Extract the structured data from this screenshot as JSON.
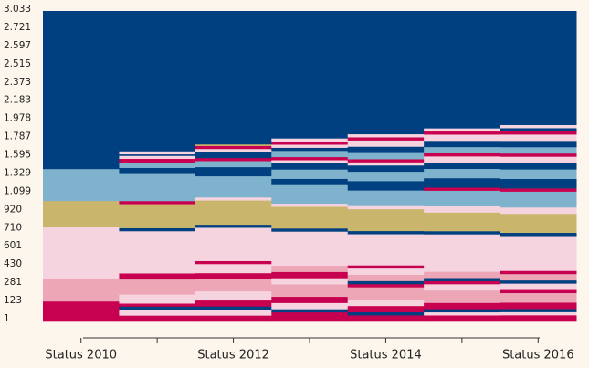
{
  "chart_data": {
    "type": "sequence-index",
    "categories": [
      "Status 2010",
      null,
      "Status 2012",
      null,
      "Status 2014",
      null,
      "Status 2016"
    ],
    "y_labels": [
      "1",
      "123",
      "281",
      "430",
      "601",
      "710",
      "920",
      "1.099",
      "1.329",
      "1.595",
      "1.787",
      "1.978",
      "2.183",
      "2.373",
      "2.515",
      "2.597",
      "2.721",
      "3.033"
    ],
    "state_colors": [
      "#003f80",
      "#7fb2cc",
      "#c9b56c",
      "#f5d4df",
      "#eca6b6",
      "#c7004f"
    ],
    "columns": [
      {
        "segments": [
          {
            "state": 5,
            "value": 6.5
          },
          {
            "state": 4,
            "value": 7.4
          },
          {
            "state": 3,
            "value": 16.5
          },
          {
            "state": 2,
            "value": 8.5
          },
          {
            "state": 1,
            "value": 10.3
          },
          {
            "state": 0,
            "value": 50.9
          }
        ]
      },
      {
        "segments": [
          {
            "state": 5,
            "value": 2
          },
          {
            "state": 3,
            "value": 2
          },
          {
            "state": 0,
            "value": 1
          },
          {
            "state": 5,
            "value": 1
          },
          {
            "state": 3,
            "value": 3
          },
          {
            "state": 4,
            "value": 5
          },
          {
            "state": 5,
            "value": 2
          },
          {
            "state": 3,
            "value": 14
          },
          {
            "state": 0,
            "value": 1
          },
          {
            "state": 2,
            "value": 8
          },
          {
            "state": 5,
            "value": 1
          },
          {
            "state": 1,
            "value": 9
          },
          {
            "state": 0,
            "value": 2
          },
          {
            "state": 1,
            "value": 1.5
          },
          {
            "state": 5,
            "value": 1.5
          },
          {
            "state": 3,
            "value": 1
          },
          {
            "state": 0,
            "value": 0.5
          },
          {
            "state": 3,
            "value": 1
          },
          {
            "state": 0,
            "value": 46.5
          }
        ]
      },
      {
        "segments": [
          {
            "state": 5,
            "value": 2
          },
          {
            "state": 3,
            "value": 2
          },
          {
            "state": 0,
            "value": 1
          },
          {
            "state": 5,
            "value": 2
          },
          {
            "state": 3,
            "value": 3
          },
          {
            "state": 4,
            "value": 4
          },
          {
            "state": 5,
            "value": 2
          },
          {
            "state": 3,
            "value": 3
          },
          {
            "state": 5,
            "value": 1
          },
          {
            "state": 3,
            "value": 11
          },
          {
            "state": 0,
            "value": 1
          },
          {
            "state": 2,
            "value": 8
          },
          {
            "state": 3,
            "value": 1
          },
          {
            "state": 1,
            "value": 7
          },
          {
            "state": 0,
            "value": 3
          },
          {
            "state": 1,
            "value": 2
          },
          {
            "state": 5,
            "value": 1
          },
          {
            "state": 0,
            "value": 2
          },
          {
            "state": 3,
            "value": 1
          },
          {
            "state": 5,
            "value": 1
          },
          {
            "state": 2,
            "value": 0.5
          },
          {
            "state": 0,
            "value": 44
          }
        ]
      },
      {
        "segments": [
          {
            "state": 5,
            "value": 3
          },
          {
            "state": 0,
            "value": 1
          },
          {
            "state": 3,
            "value": 2
          },
          {
            "state": 5,
            "value": 2
          },
          {
            "state": 4,
            "value": 4
          },
          {
            "state": 3,
            "value": 2
          },
          {
            "state": 5,
            "value": 2
          },
          {
            "state": 4,
            "value": 2
          },
          {
            "state": 3,
            "value": 11
          },
          {
            "state": 0,
            "value": 1
          },
          {
            "state": 2,
            "value": 7
          },
          {
            "state": 3,
            "value": 1
          },
          {
            "state": 1,
            "value": 6
          },
          {
            "state": 0,
            "value": 2
          },
          {
            "state": 1,
            "value": 3
          },
          {
            "state": 0,
            "value": 2
          },
          {
            "state": 3,
            "value": 1
          },
          {
            "state": 5,
            "value": 1
          },
          {
            "state": 1,
            "value": 2
          },
          {
            "state": 0,
            "value": 1
          },
          {
            "state": 3,
            "value": 1
          },
          {
            "state": 5,
            "value": 1
          },
          {
            "state": 3,
            "value": 1
          },
          {
            "state": 0,
            "value": 41
          }
        ]
      },
      {
        "segments": [
          {
            "state": 5,
            "value": 2
          },
          {
            "state": 0,
            "value": 1
          },
          {
            "state": 5,
            "value": 2
          },
          {
            "state": 3,
            "value": 2
          },
          {
            "state": 4,
            "value": 4
          },
          {
            "state": 5,
            "value": 1
          },
          {
            "state": 0,
            "value": 1
          },
          {
            "state": 4,
            "value": 2
          },
          {
            "state": 3,
            "value": 2
          },
          {
            "state": 5,
            "value": 1
          },
          {
            "state": 3,
            "value": 10
          },
          {
            "state": 0,
            "value": 1
          },
          {
            "state": 2,
            "value": 7
          },
          {
            "state": 3,
            "value": 1
          },
          {
            "state": 1,
            "value": 5
          },
          {
            "state": 0,
            "value": 3
          },
          {
            "state": 1,
            "value": 3
          },
          {
            "state": 0,
            "value": 2
          },
          {
            "state": 3,
            "value": 1
          },
          {
            "state": 5,
            "value": 1
          },
          {
            "state": 1,
            "value": 2
          },
          {
            "state": 0,
            "value": 2
          },
          {
            "state": 3,
            "value": 2
          },
          {
            "state": 5,
            "value": 1
          },
          {
            "state": 3,
            "value": 1
          },
          {
            "state": 0,
            "value": 39.4
          }
        ]
      },
      {
        "segments": [
          {
            "state": 5,
            "value": 2
          },
          {
            "state": 3,
            "value": 1
          },
          {
            "state": 0,
            "value": 1
          },
          {
            "state": 5,
            "value": 2
          },
          {
            "state": 4,
            "value": 4
          },
          {
            "state": 3,
            "value": 2
          },
          {
            "state": 5,
            "value": 1
          },
          {
            "state": 0,
            "value": 1
          },
          {
            "state": 4,
            "value": 2
          },
          {
            "state": 3,
            "value": 3
          },
          {
            "state": 3,
            "value": 9
          },
          {
            "state": 0,
            "value": 1
          },
          {
            "state": 2,
            "value": 6
          },
          {
            "state": 3,
            "value": 2
          },
          {
            "state": 1,
            "value": 5
          },
          {
            "state": 5,
            "value": 1
          },
          {
            "state": 0,
            "value": 3
          },
          {
            "state": 1,
            "value": 3
          },
          {
            "state": 0,
            "value": 2
          },
          {
            "state": 3,
            "value": 2
          },
          {
            "state": 5,
            "value": 1
          },
          {
            "state": 1,
            "value": 2
          },
          {
            "state": 0,
            "value": 2
          },
          {
            "state": 3,
            "value": 2
          },
          {
            "state": 5,
            "value": 1
          },
          {
            "state": 3,
            "value": 1
          },
          {
            "state": 0,
            "value": 37.6
          }
        ]
      },
      {
        "segments": [
          {
            "state": 5,
            "value": 2
          },
          {
            "state": 3,
            "value": 1
          },
          {
            "state": 0,
            "value": 1
          },
          {
            "state": 5,
            "value": 2
          },
          {
            "state": 4,
            "value": 3
          },
          {
            "state": 5,
            "value": 1
          },
          {
            "state": 3,
            "value": 2
          },
          {
            "state": 0,
            "value": 1
          },
          {
            "state": 4,
            "value": 2
          },
          {
            "state": 5,
            "value": 1
          },
          {
            "state": 3,
            "value": 3
          },
          {
            "state": 3,
            "value": 8
          },
          {
            "state": 0,
            "value": 1
          },
          {
            "state": 2,
            "value": 6
          },
          {
            "state": 3,
            "value": 2
          },
          {
            "state": 1,
            "value": 5
          },
          {
            "state": 5,
            "value": 1
          },
          {
            "state": 0,
            "value": 3
          },
          {
            "state": 1,
            "value": 3
          },
          {
            "state": 0,
            "value": 2
          },
          {
            "state": 3,
            "value": 2
          },
          {
            "state": 5,
            "value": 1
          },
          {
            "state": 1,
            "value": 2
          },
          {
            "state": 0,
            "value": 2
          },
          {
            "state": 3,
            "value": 2
          },
          {
            "state": 5,
            "value": 1
          },
          {
            "state": 0,
            "value": 1
          },
          {
            "state": 3,
            "value": 1
          },
          {
            "state": 0,
            "value": 35.9
          }
        ]
      }
    ]
  }
}
